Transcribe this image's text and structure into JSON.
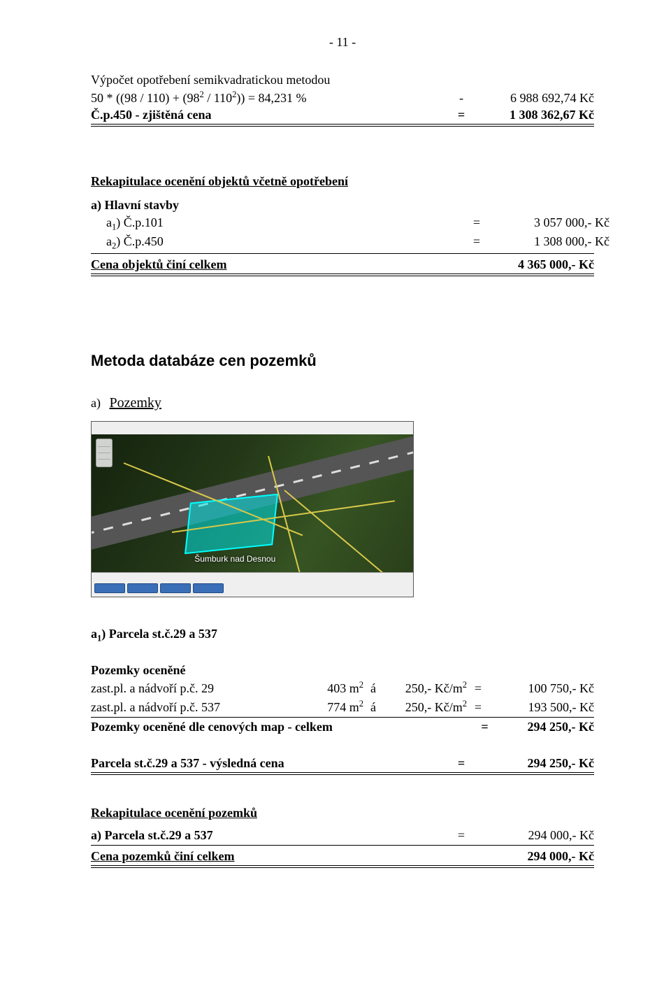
{
  "page_number_label": "- 11 -",
  "depr_heading": "Výpočet opotřebení semikvadratickou metodou",
  "depr_formula": "50 * ((98 / 110) + (98",
  "depr_exp1": "2",
  "depr_formula2": " / 110",
  "depr_exp2": "2",
  "depr_formula3": ")) = 84,231 %",
  "depr_minus": "-",
  "depr_value": "6 988 692,74 Kč",
  "cp450_label": "Č.p.450 - zjištěná cena",
  "cp450_eq": "=",
  "cp450_value": "1 308 362,67 Kč",
  "recap_obj_heading": "Rekapitulace ocenění objektů včetně opotřebení",
  "recap_a_heading": "a) Hlavní stavby",
  "recap_rows": [
    {
      "label_pre": "a",
      "label_sub": "1",
      "label_post": ") Č.p.101",
      "eq": "=",
      "value": "3 057 000,- Kč"
    },
    {
      "label_pre": "a",
      "label_sub": "2",
      "label_post": ") Č.p.450",
      "eq": "=",
      "value": "1 308 000,- Kč"
    }
  ],
  "obj_total_label": "Cena objektů činí celkem",
  "obj_total_value": "4 365 000,- Kč",
  "method_heading": "Metoda databáze cen pozemků",
  "ol_letter": "a)",
  "ol_text": "Pozemky",
  "map_label": "Šumburk nad Desnou",
  "parcel_heading_pre": "a",
  "parcel_heading_sub": "1",
  "parcel_heading_post": ") Parcela st.č.29 a 537",
  "valued_heading": "Pozemky oceněné",
  "valued_rows": [
    {
      "name": "zast.pl. a nádvoří  p.č. 29",
      "qty": "403 m",
      "qexp": "2",
      "a": "á",
      "rate": "250,- Kč/m",
      "rexp": "2",
      "eq": "=",
      "value": "100 750,- Kč"
    },
    {
      "name": "zast.pl. a nádvoří  p.č. 537",
      "qty": "774 m",
      "qexp": "2",
      "a": "á",
      "rate": "250,- Kč/m",
      "rexp": "2",
      "eq": "=",
      "value": "193 500,- Kč"
    }
  ],
  "valued_total_label": "Pozemky oceněné dle cenových map - celkem",
  "valued_total_eq": "=",
  "valued_total_value": "294 250,- Kč",
  "parcel_result_label": "Parcela st.č.29 a 537 - výsledná cena",
  "parcel_result_eq": "=",
  "parcel_result_value": "294 250,- Kč",
  "recap_poz_heading": "Rekapitulace ocenění pozemků",
  "recap_poz_row_label": "a) Parcela st.č.29 a 537",
  "recap_poz_row_eq": "=",
  "recap_poz_row_value": "294 000,- Kč",
  "poz_total_label": "Cena pozemků činí celkem",
  "poz_total_value": "294 000,- Kč"
}
